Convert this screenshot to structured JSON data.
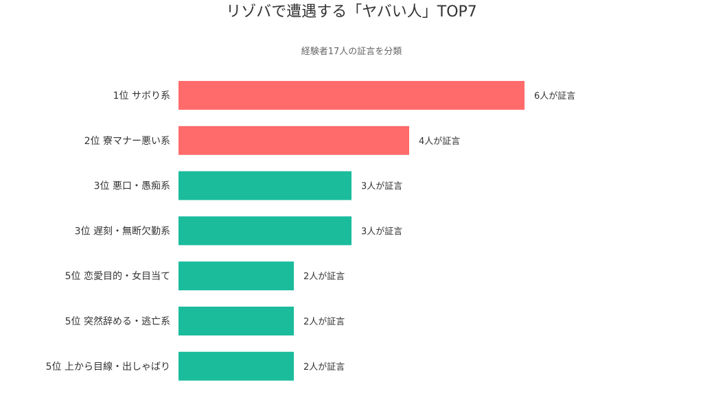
{
  "chart_data": {
    "type": "bar",
    "orientation": "horizontal",
    "title": "リゾバで遭遇する「ヤバい人」TOP7",
    "subtitle": "経験者17人の証言を分類",
    "categories": [
      "1位  サボり系",
      "2位  寮マナー悪い系",
      "3位  悪口・愚痴系",
      "3位  遅刻・無断欠勤系",
      "5位  恋愛目的・女目当て",
      "5位  突然辞める・逃亡系",
      "5位  上から目線・出しゃばり"
    ],
    "values": [
      6,
      4,
      3,
      3,
      2,
      2,
      2
    ],
    "value_labels": [
      "6人が証言",
      "4人が証言",
      "3人が証言",
      "3人が証言",
      "2人が証言",
      "2人が証言",
      "2人が証言"
    ],
    "xlim": [
      0,
      6
    ],
    "grid": false,
    "legend": "none",
    "bar_colors": [
      "#ff6b6b",
      "#ff6b6b",
      "#1abc9c",
      "#1abc9c",
      "#1abc9c",
      "#1abc9c",
      "#1abc9c"
    ]
  }
}
